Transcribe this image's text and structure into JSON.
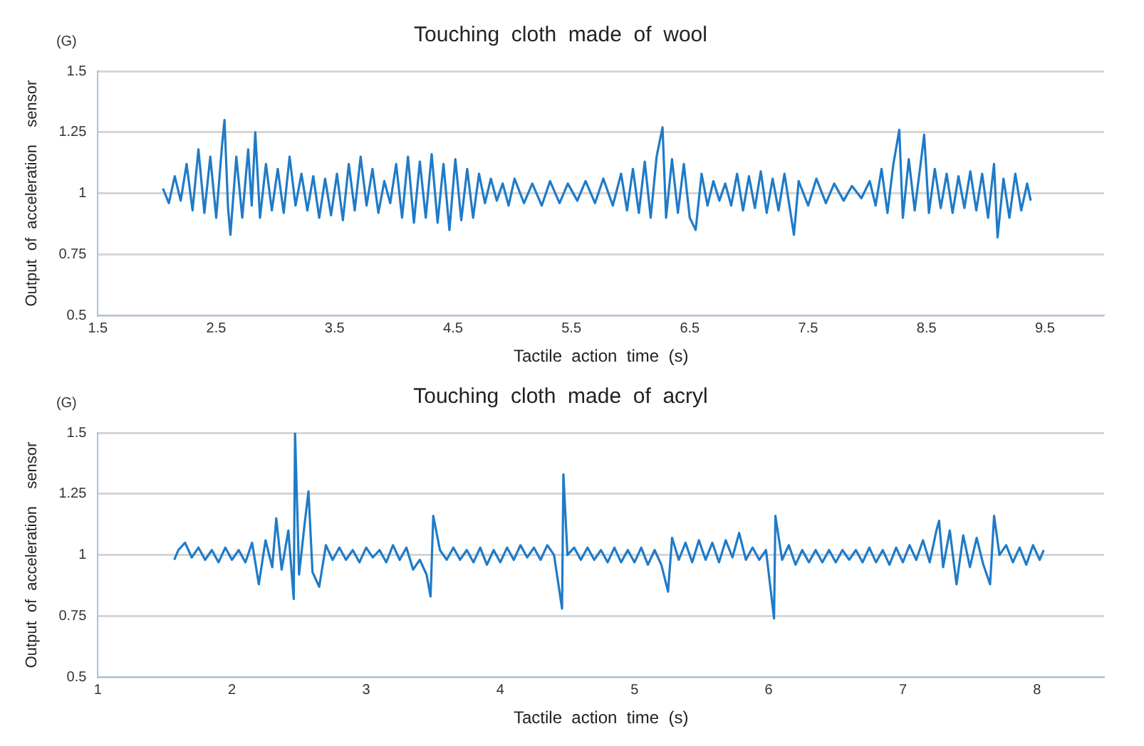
{
  "chart_data": [
    {
      "type": "line",
      "title": "Touching  cloth  made  of  wool",
      "xlabel": "Tactile  action  time  (s)",
      "ylabel": "Output  of  acceleration    sensor",
      "annotations": [
        "(G)"
      ],
      "x": [
        2.05,
        2.1,
        2.15,
        2.2,
        2.25,
        2.3,
        2.35,
        2.4,
        2.45,
        2.5,
        2.55,
        2.57,
        2.6,
        2.62,
        2.67,
        2.72,
        2.77,
        2.8,
        2.83,
        2.87,
        2.92,
        2.97,
        3.02,
        3.07,
        3.12,
        3.17,
        3.22,
        3.27,
        3.32,
        3.37,
        3.42,
        3.47,
        3.52,
        3.57,
        3.62,
        3.67,
        3.72,
        3.77,
        3.82,
        3.87,
        3.92,
        3.97,
        4.02,
        4.07,
        4.12,
        4.17,
        4.22,
        4.27,
        4.32,
        4.37,
        4.42,
        4.47,
        4.52,
        4.57,
        4.62,
        4.67,
        4.72,
        4.77,
        4.82,
        4.87,
        4.92,
        4.97,
        5.02,
        5.1,
        5.17,
        5.25,
        5.32,
        5.4,
        5.47,
        5.55,
        5.62,
        5.7,
        5.77,
        5.85,
        5.92,
        5.97,
        6.02,
        6.07,
        6.12,
        6.17,
        6.22,
        6.27,
        6.3,
        6.35,
        6.4,
        6.45,
        6.5,
        6.55,
        6.6,
        6.65,
        6.7,
        6.75,
        6.8,
        6.85,
        6.9,
        6.95,
        7.0,
        7.05,
        7.1,
        7.15,
        7.2,
        7.25,
        7.3,
        7.38,
        7.42,
        7.5,
        7.57,
        7.65,
        7.72,
        7.8,
        7.87,
        7.95,
        8.02,
        8.07,
        8.12,
        8.17,
        8.22,
        8.27,
        8.3,
        8.35,
        8.4,
        8.45,
        8.48,
        8.52,
        8.57,
        8.62,
        8.67,
        8.72,
        8.77,
        8.82,
        8.87,
        8.92,
        8.97,
        9.02,
        9.07,
        9.1,
        9.15,
        9.2,
        9.25,
        9.3,
        9.35,
        9.38
      ],
      "series": [
        {
          "color": "#1f7bc8",
          "values": [
            1.02,
            0.96,
            1.07,
            0.97,
            1.12,
            0.93,
            1.18,
            0.92,
            1.15,
            0.9,
            1.2,
            1.3,
            0.94,
            0.83,
            1.15,
            0.9,
            1.18,
            0.95,
            1.25,
            0.9,
            1.12,
            0.93,
            1.1,
            0.92,
            1.15,
            0.95,
            1.08,
            0.93,
            1.07,
            0.9,
            1.06,
            0.91,
            1.08,
            0.89,
            1.12,
            0.93,
            1.15,
            0.95,
            1.1,
            0.92,
            1.05,
            0.96,
            1.12,
            0.9,
            1.15,
            0.88,
            1.13,
            0.9,
            1.16,
            0.88,
            1.12,
            0.85,
            1.14,
            0.89,
            1.1,
            0.9,
            1.08,
            0.96,
            1.06,
            0.97,
            1.04,
            0.95,
            1.06,
            0.96,
            1.04,
            0.95,
            1.05,
            0.96,
            1.04,
            0.97,
            1.05,
            0.96,
            1.06,
            0.95,
            1.08,
            0.93,
            1.1,
            0.92,
            1.13,
            0.9,
            1.15,
            1.27,
            0.9,
            1.14,
            0.92,
            1.12,
            0.9,
            0.85,
            1.08,
            0.95,
            1.05,
            0.97,
            1.04,
            0.95,
            1.08,
            0.93,
            1.07,
            0.94,
            1.09,
            0.92,
            1.06,
            0.93,
            1.08,
            0.83,
            1.05,
            0.95,
            1.06,
            0.96,
            1.04,
            0.97,
            1.03,
            0.98,
            1.05,
            0.95,
            1.1,
            0.92,
            1.12,
            1.26,
            0.9,
            1.14,
            0.93,
            1.12,
            1.24,
            0.92,
            1.1,
            0.94,
            1.08,
            0.92,
            1.07,
            0.94,
            1.09,
            0.93,
            1.08,
            0.9,
            1.12,
            0.82,
            1.06,
            0.9,
            1.08,
            0.93,
            1.04,
            0.97
          ]
        }
      ],
      "xlim": [
        1.5,
        10
      ],
      "xticks": [
        1.5,
        2.5,
        3.5,
        4.5,
        5.5,
        6.5,
        7.5,
        8.5,
        9.5
      ],
      "ylim": [
        0.5,
        1.5
      ],
      "yticks": [
        0.5,
        0.75,
        1,
        1.25,
        1.5
      ],
      "grid": "y"
    },
    {
      "type": "line",
      "title": "Touching  cloth  made  of  acryl",
      "xlabel": "Tactile  action  time  (s)",
      "ylabel": "Output  of  acceleration    sensor",
      "annotations": [
        "(G)"
      ],
      "x": [
        1.57,
        1.6,
        1.65,
        1.7,
        1.75,
        1.8,
        1.85,
        1.9,
        1.95,
        2.0,
        2.05,
        2.1,
        2.15,
        2.2,
        2.25,
        2.3,
        2.33,
        2.37,
        2.42,
        2.46,
        2.47,
        2.5,
        2.54,
        2.57,
        2.6,
        2.65,
        2.7,
        2.75,
        2.8,
        2.85,
        2.9,
        2.95,
        3.0,
        3.05,
        3.1,
        3.15,
        3.2,
        3.25,
        3.3,
        3.35,
        3.4,
        3.45,
        3.48,
        3.5,
        3.55,
        3.6,
        3.65,
        3.7,
        3.75,
        3.8,
        3.85,
        3.9,
        3.95,
        4.0,
        4.05,
        4.1,
        4.15,
        4.2,
        4.25,
        4.3,
        4.35,
        4.4,
        4.46,
        4.47,
        4.5,
        4.55,
        4.6,
        4.65,
        4.7,
        4.75,
        4.8,
        4.85,
        4.9,
        4.95,
        5.0,
        5.05,
        5.1,
        5.15,
        5.2,
        5.25,
        5.28,
        5.33,
        5.38,
        5.43,
        5.48,
        5.53,
        5.58,
        5.63,
        5.68,
        5.73,
        5.78,
        5.83,
        5.88,
        5.93,
        5.98,
        6.04,
        6.05,
        6.1,
        6.15,
        6.2,
        6.25,
        6.3,
        6.35,
        6.4,
        6.45,
        6.5,
        6.55,
        6.6,
        6.65,
        6.7,
        6.75,
        6.8,
        6.85,
        6.9,
        6.95,
        7.0,
        7.05,
        7.1,
        7.15,
        7.2,
        7.25,
        7.27,
        7.3,
        7.35,
        7.4,
        7.45,
        7.5,
        7.55,
        7.6,
        7.65,
        7.68,
        7.72,
        7.77,
        7.82,
        7.87,
        7.92,
        7.97,
        8.02,
        8.05
      ],
      "series": [
        {
          "color": "#1f7bc8",
          "values": [
            0.98,
            1.02,
            1.05,
            0.99,
            1.03,
            0.98,
            1.02,
            0.97,
            1.03,
            0.98,
            1.02,
            0.97,
            1.05,
            0.88,
            1.06,
            0.95,
            1.15,
            0.94,
            1.1,
            0.82,
            1.5,
            0.92,
            1.12,
            1.26,
            0.93,
            0.87,
            1.04,
            0.98,
            1.03,
            0.98,
            1.02,
            0.97,
            1.03,
            0.99,
            1.02,
            0.97,
            1.04,
            0.98,
            1.03,
            0.94,
            0.98,
            0.92,
            0.83,
            1.16,
            1.02,
            0.98,
            1.03,
            0.98,
            1.02,
            0.97,
            1.03,
            0.96,
            1.02,
            0.97,
            1.03,
            0.98,
            1.04,
            0.99,
            1.03,
            0.98,
            1.04,
            1.0,
            0.78,
            1.33,
            1.0,
            1.03,
            0.98,
            1.03,
            0.98,
            1.02,
            0.97,
            1.03,
            0.97,
            1.02,
            0.97,
            1.03,
            0.96,
            1.02,
            0.96,
            0.85,
            1.07,
            0.98,
            1.05,
            0.97,
            1.06,
            0.98,
            1.05,
            0.97,
            1.06,
            0.99,
            1.09,
            0.98,
            1.03,
            0.98,
            1.02,
            0.74,
            1.16,
            0.98,
            1.04,
            0.96,
            1.02,
            0.97,
            1.02,
            0.97,
            1.02,
            0.97,
            1.02,
            0.98,
            1.02,
            0.97,
            1.03,
            0.97,
            1.02,
            0.96,
            1.03,
            0.97,
            1.04,
            0.98,
            1.06,
            0.97,
            1.1,
            1.14,
            0.95,
            1.1,
            0.88,
            1.08,
            0.95,
            1.07,
            0.96,
            0.88,
            1.16,
            1.0,
            1.04,
            0.97,
            1.03,
            0.96,
            1.04,
            0.98,
            1.02
          ]
        }
      ],
      "xlim": [
        1,
        8.5
      ],
      "xticks": [
        1,
        2,
        3,
        4,
        5,
        6,
        7,
        8
      ],
      "ylim": [
        0.5,
        1.5
      ],
      "yticks": [
        0.5,
        0.75,
        1,
        1.25,
        1.5
      ],
      "grid": "y"
    }
  ]
}
